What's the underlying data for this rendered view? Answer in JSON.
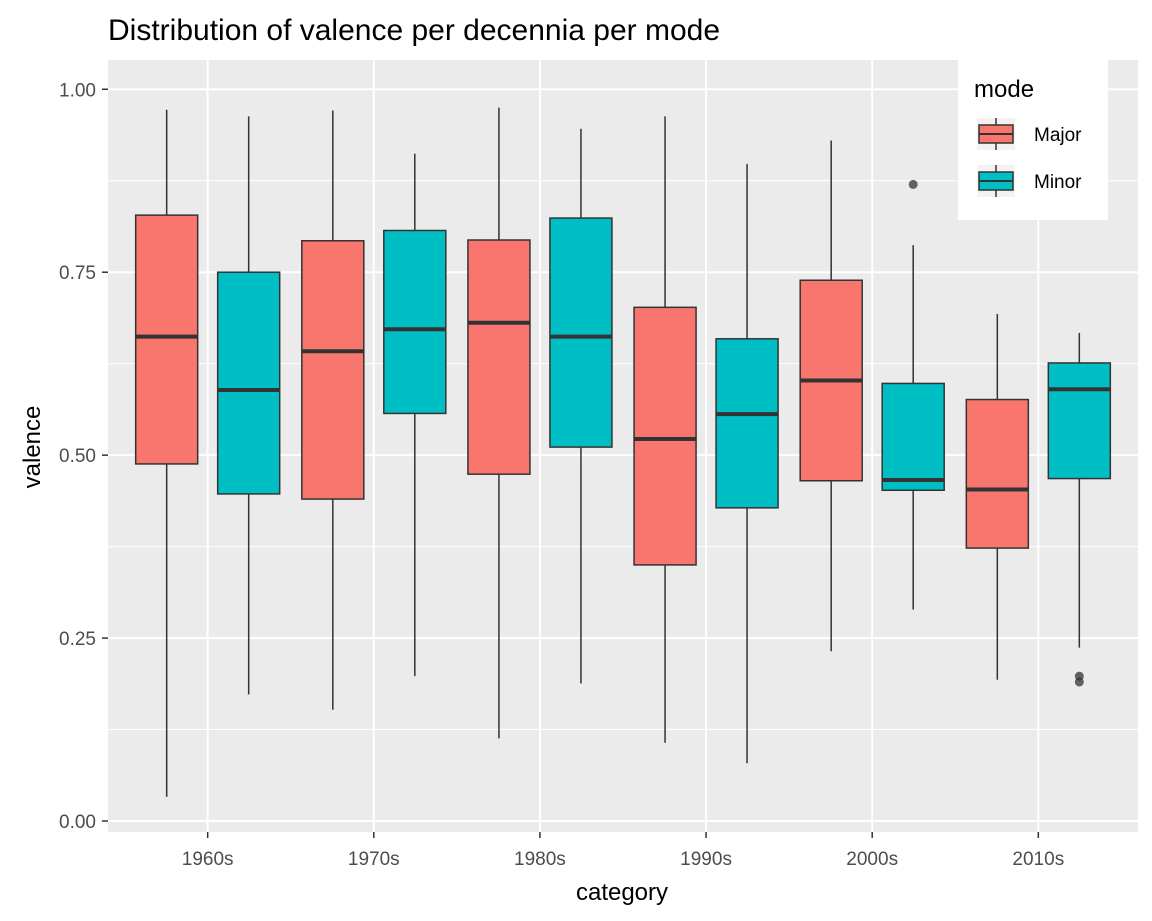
{
  "chart_data": {
    "type": "boxplot",
    "title": "Distribution of valence per decennia per mode",
    "xlabel": "category",
    "ylabel": "valence",
    "ylim": [
      -0.015,
      1.04
    ],
    "yticks": [
      "0.00",
      "0.25",
      "0.50",
      "0.75",
      "1.00"
    ],
    "ytick_values": [
      0,
      0.25,
      0.5,
      0.75,
      1.0
    ],
    "categories": [
      "1960s",
      "1970s",
      "1980s",
      "1990s",
      "2000s",
      "2010s"
    ],
    "grid": true,
    "legend_position": "top-right",
    "legend_title": "mode",
    "series": [
      {
        "name": "Major",
        "color": "#F8766D",
        "boxes": [
          {
            "category": "1960s",
            "min": 0.033,
            "q1": 0.488,
            "median": 0.662,
            "q3": 0.828,
            "max": 0.972,
            "outliers": []
          },
          {
            "category": "1970s",
            "min": 0.152,
            "q1": 0.44,
            "median": 0.642,
            "q3": 0.793,
            "max": 0.971,
            "outliers": []
          },
          {
            "category": "1980s",
            "min": 0.113,
            "q1": 0.474,
            "median": 0.681,
            "q3": 0.794,
            "max": 0.975,
            "outliers": []
          },
          {
            "category": "1990s",
            "min": 0.107,
            "q1": 0.35,
            "median": 0.522,
            "q3": 0.702,
            "max": 0.963,
            "outliers": []
          },
          {
            "category": "2000s",
            "min": 0.232,
            "q1": 0.465,
            "median": 0.602,
            "q3": 0.739,
            "max": 0.93,
            "outliers": []
          },
          {
            "category": "2010s",
            "min": 0.193,
            "q1": 0.373,
            "median": 0.453,
            "q3": 0.576,
            "max": 0.693,
            "outliers": []
          }
        ]
      },
      {
        "name": "Minor",
        "color": "#00BFC4",
        "boxes": [
          {
            "category": "1960s",
            "min": 0.173,
            "q1": 0.447,
            "median": 0.589,
            "q3": 0.75,
            "max": 0.963,
            "outliers": []
          },
          {
            "category": "1970s",
            "min": 0.198,
            "q1": 0.557,
            "median": 0.672,
            "q3": 0.807,
            "max": 0.912,
            "outliers": []
          },
          {
            "category": "1980s",
            "min": 0.188,
            "q1": 0.511,
            "median": 0.662,
            "q3": 0.824,
            "max": 0.946,
            "outliers": []
          },
          {
            "category": "1990s",
            "min": 0.079,
            "q1": 0.428,
            "median": 0.556,
            "q3": 0.659,
            "max": 0.898,
            "outliers": []
          },
          {
            "category": "2000s",
            "min": 0.289,
            "q1": 0.452,
            "median": 0.466,
            "q3": 0.598,
            "max": 0.787,
            "outliers": [
              0.87
            ]
          },
          {
            "category": "2010s",
            "min": 0.237,
            "q1": 0.468,
            "median": 0.59,
            "q3": 0.626,
            "max": 0.667,
            "outliers": [
              0.198,
              0.19
            ]
          }
        ]
      }
    ]
  }
}
